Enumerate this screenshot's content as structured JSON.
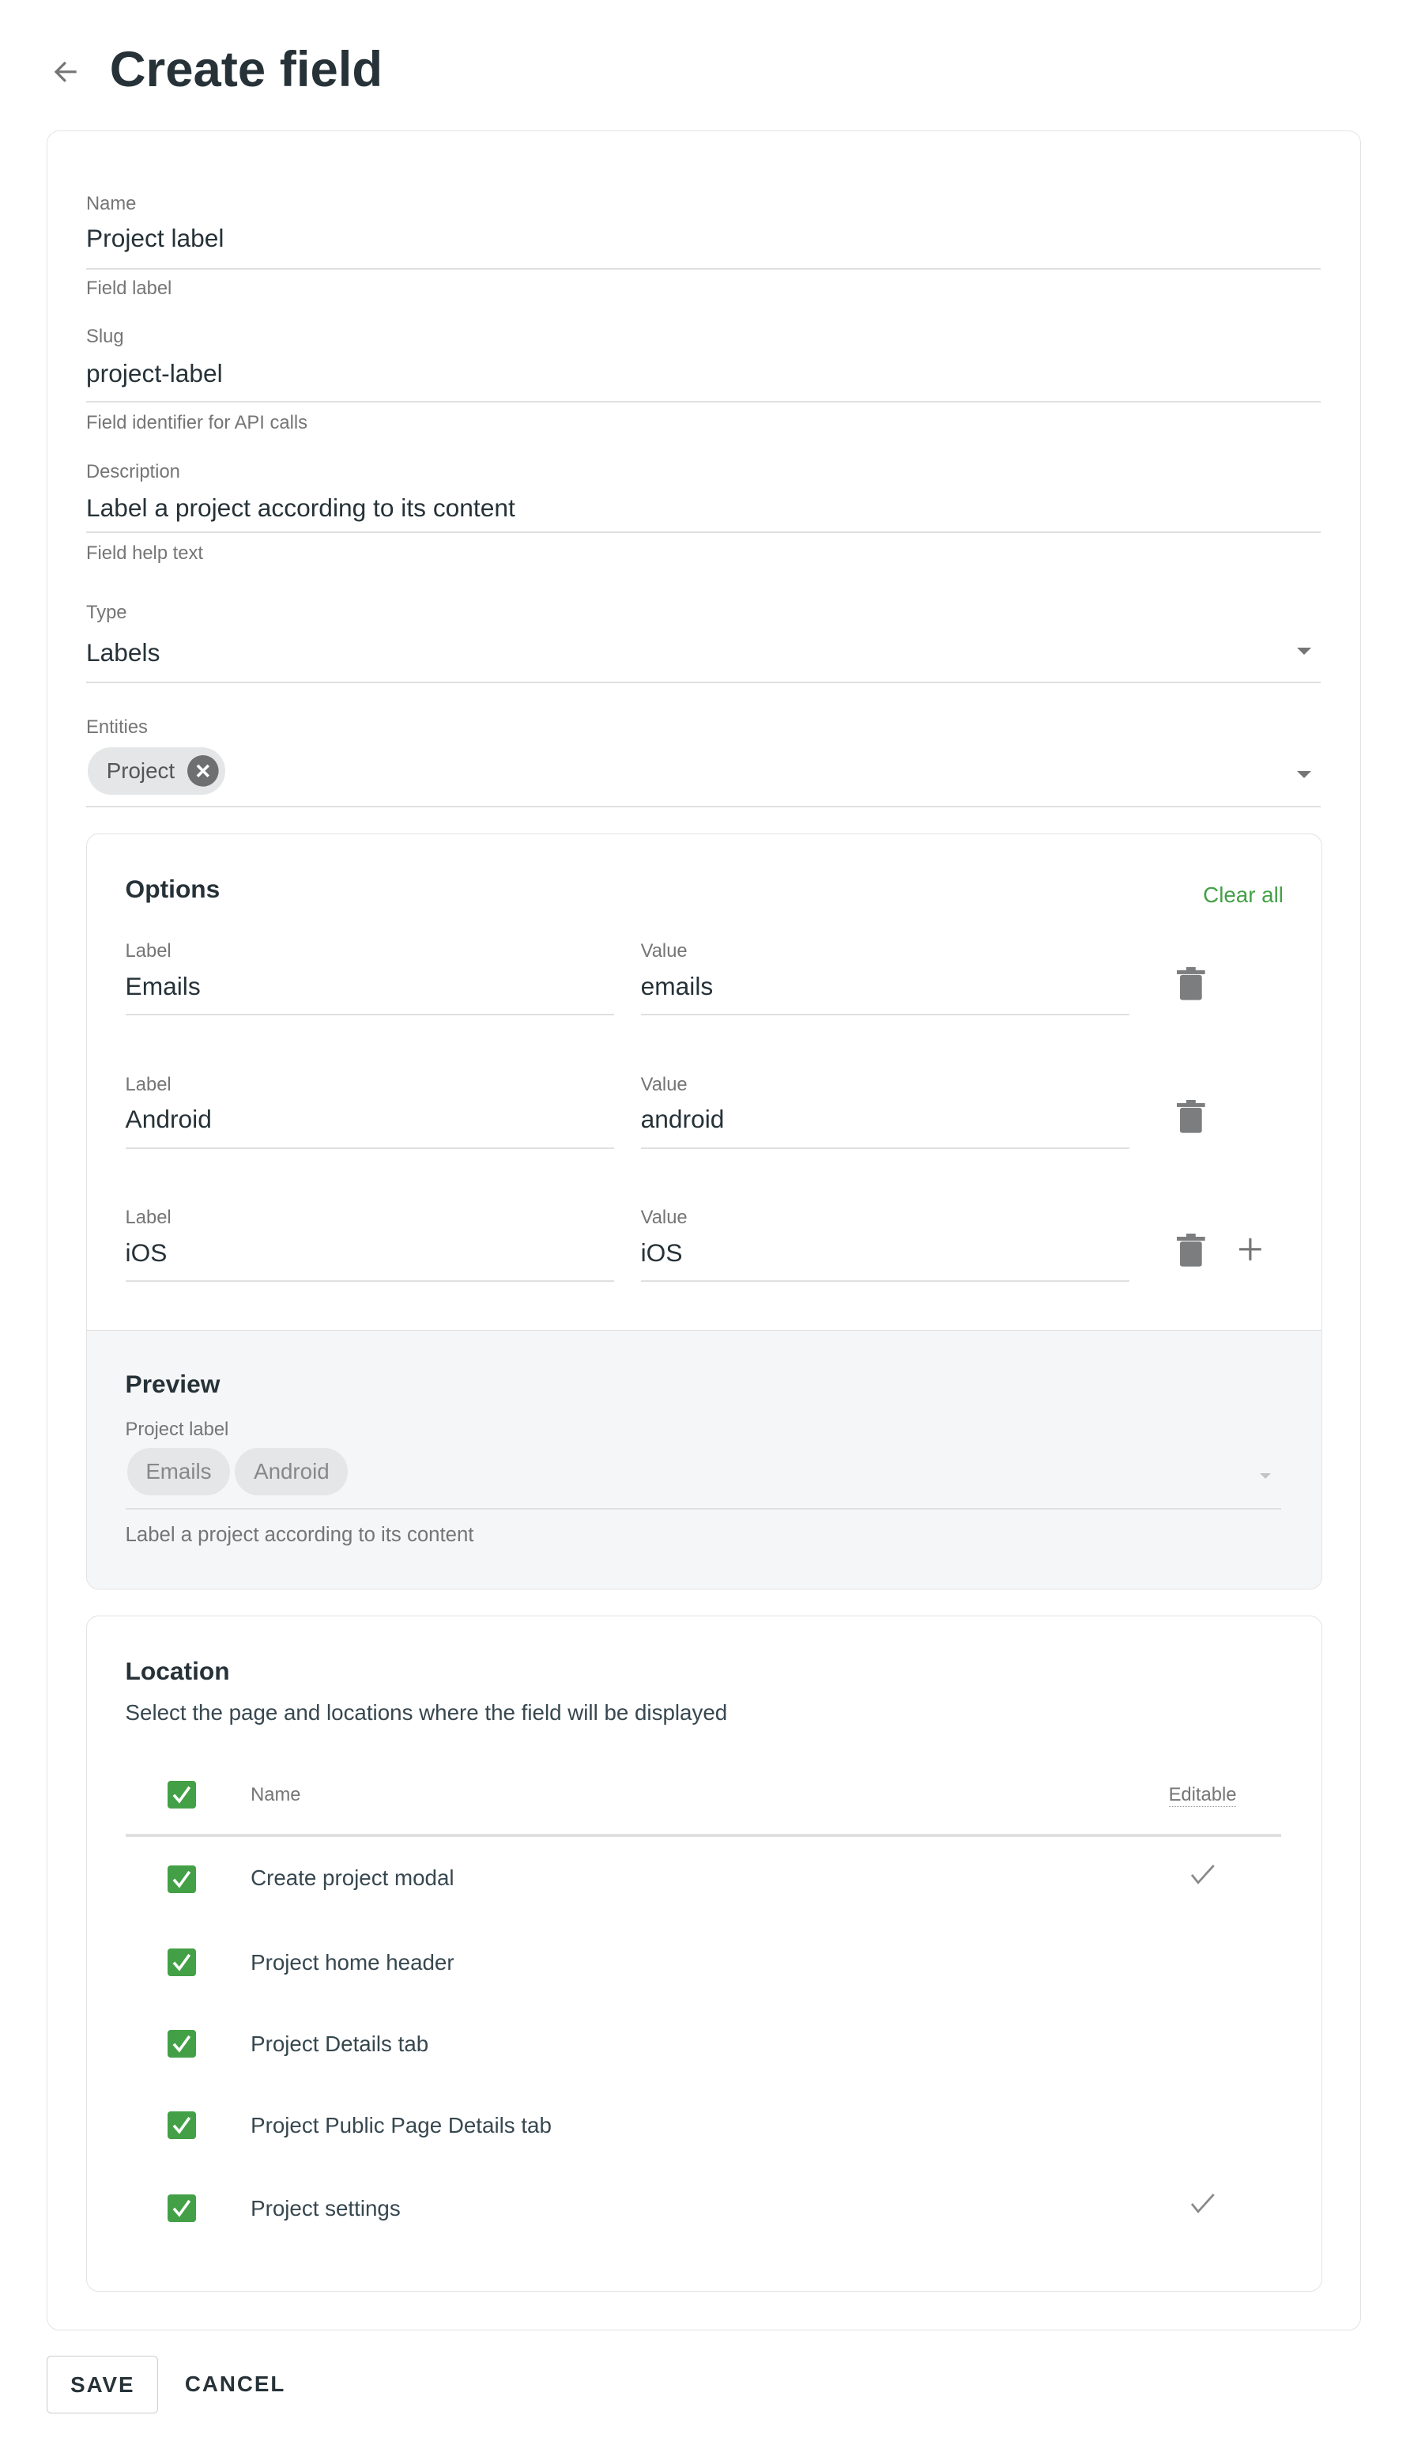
{
  "header": {
    "title": "Create field",
    "back_icon": "arrow-left-icon"
  },
  "form": {
    "name": {
      "label": "Name",
      "value": "Project label",
      "helper": "Field label"
    },
    "slug": {
      "label": "Slug",
      "value": "project-label",
      "helper": "Field identifier for API calls"
    },
    "description": {
      "label": "Description",
      "value": "Label a project according to its content",
      "helper": "Field help text"
    },
    "type": {
      "label": "Type",
      "value": "Labels"
    },
    "entities": {
      "label": "Entities",
      "chips": [
        "Project"
      ]
    }
  },
  "options": {
    "title": "Options",
    "clear_all": "Clear all",
    "rows": [
      {
        "label_caption": "Label",
        "label": "Emails",
        "value_caption": "Value",
        "value": "emails"
      },
      {
        "label_caption": "Label",
        "label": "Android",
        "value_caption": "Value",
        "value": "android"
      },
      {
        "label_caption": "Label",
        "label": "iOS",
        "value_caption": "Value",
        "value": "iOS"
      }
    ]
  },
  "preview": {
    "title": "Preview",
    "field_label": "Project label",
    "chips": [
      "Emails",
      "Android"
    ],
    "helper": "Label a project according to its content"
  },
  "location": {
    "title": "Location",
    "subtitle": "Select the page and locations where the field will be displayed",
    "columns": {
      "name": "Name",
      "editable": "Editable"
    },
    "select_all_checked": true,
    "rows": [
      {
        "name": "Create project modal",
        "checked": true,
        "editable": true
      },
      {
        "name": "Project home header",
        "checked": true,
        "editable": false
      },
      {
        "name": "Project Details tab",
        "checked": true,
        "editable": false
      },
      {
        "name": "Project Public Page Details tab",
        "checked": true,
        "editable": false
      },
      {
        "name": "Project settings",
        "checked": true,
        "editable": true
      }
    ]
  },
  "actions": {
    "save": "SAVE",
    "cancel": "CANCEL"
  },
  "colors": {
    "accent": "#43a047",
    "text": "#263238",
    "muted": "#757575"
  }
}
